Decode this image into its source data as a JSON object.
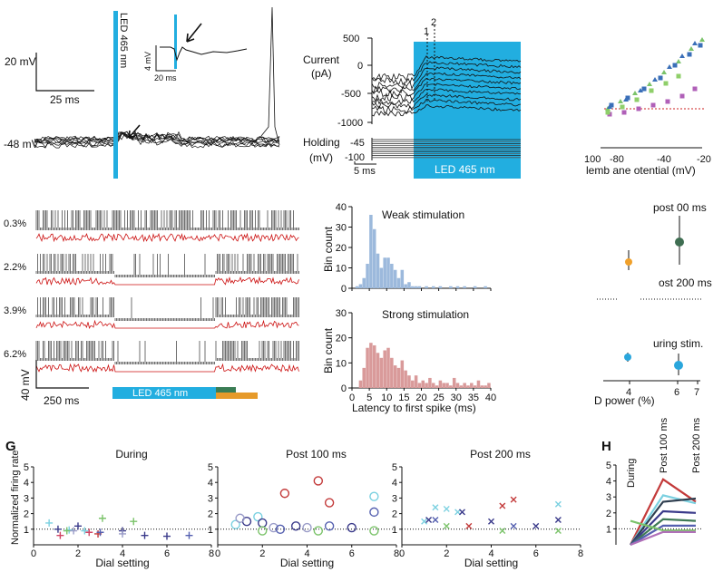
{
  "colors": {
    "led": "#22aee0",
    "trace": "#111111",
    "red_trace": "#cc1111",
    "hist_weak": "#9cb9dc",
    "hist_strong": "#d99a9a",
    "bar_green": "#3a7d55",
    "bar_orange": "#e69a2a",
    "dot_dark_green": "#3f6e52",
    "dot_orange": "#f0a02a",
    "dot_blue": "#2aa6dc",
    "pos_a": "#7ad0e0",
    "pos_b": "#9a9cc8",
    "pos_c": "#7bc36a",
    "pos_d": "#d04464",
    "pos_e": "#3a3a8a",
    "pos_f": "#5560b0",
    "pos_g": "#c33a3a"
  },
  "panel_a": {
    "scale_mv": "20 mV",
    "scale_ms": "25 ms",
    "holding_label": "-48 mV",
    "led_label": "LED 465 nm",
    "inset_mv": "4 mV",
    "inset_ms": "20 ms"
  },
  "panel_b": {
    "current_label": [
      "Current",
      "(pA)"
    ],
    "holding_label": [
      "Holding",
      "(mV)"
    ],
    "y_ticks": [
      "500",
      "0",
      "-500",
      "-1000"
    ],
    "holding_ticks": [
      "-45",
      "-100"
    ],
    "marker_1": "1",
    "marker_2": "2",
    "scale_ms": "5 ms",
    "led_label": "LED 465 nm"
  },
  "panel_c": {
    "x_ticks": [
      "100",
      "-80",
      "-40",
      "-20"
    ],
    "xlabel": "lemb ane otential (mV)"
  },
  "panel_d": {
    "trace_labels": [
      "0.3%",
      "2.2%",
      "3.9%",
      "6.2%"
    ],
    "scale_mv": "40 mV",
    "scale_ms": "250 ms",
    "led_label": "LED 465 nm"
  },
  "panel_e": {
    "y_ticks": [
      "40",
      "30",
      "20",
      "10",
      "0"
    ],
    "x_ticks": [
      "0",
      "5",
      "10",
      "15",
      "20",
      "25",
      "30",
      "35",
      "40"
    ],
    "ylabel": "Bin count",
    "xlabel": "Latency to first spike (ms)",
    "weak_title": "Weak stimulation",
    "strong_title": "Strong stimulation"
  },
  "panel_f": {
    "labels": [
      "post 00 ms",
      "ost 200 ms",
      "uring stim."
    ],
    "x_ticks": [
      "4",
      "6",
      "7"
    ],
    "xlabel": "D power (%)"
  },
  "panel_g_letter": "G",
  "panel_h_letter": "H",
  "panel_h": {
    "labels": [
      "During",
      "Post 100 ms",
      "Post 200 ms"
    ],
    "y_ticks": [
      "1",
      "2",
      "3",
      "4",
      "5"
    ]
  },
  "chart_data": [
    {
      "type": "bar",
      "title": "Weak stimulation",
      "xlabel": "Latency to first spike (ms)",
      "ylabel": "Bin count",
      "xlim": [
        0,
        40
      ],
      "ylim": [
        0,
        40
      ],
      "bin_width": 1,
      "bin_starts": [
        1,
        2,
        3,
        4,
        5,
        6,
        7,
        8,
        9,
        10,
        11,
        12,
        13,
        14,
        15,
        16,
        17,
        18,
        19,
        21,
        23,
        25,
        28,
        30,
        32,
        35,
        38
      ],
      "values": [
        1,
        2,
        5,
        12,
        36,
        29,
        17,
        10,
        15,
        15,
        12,
        9,
        5,
        9,
        2,
        3,
        1,
        1,
        1,
        1,
        1,
        1,
        1,
        1,
        1,
        1,
        1
      ]
    },
    {
      "type": "bar",
      "title": "Strong stimulation",
      "xlabel": "Latency to first spike (ms)",
      "ylabel": "Bin count",
      "xlim": [
        0,
        40
      ],
      "ylim": [
        0,
        30
      ],
      "bin_width": 1,
      "bin_starts": [
        2,
        3,
        4,
        5,
        6,
        7,
        8,
        9,
        10,
        11,
        12,
        13,
        14,
        15,
        16,
        17,
        18,
        19,
        20,
        21,
        22,
        23,
        24,
        25,
        26,
        27,
        28,
        29,
        30,
        31,
        32,
        33,
        34,
        35,
        36,
        37,
        38,
        39
      ],
      "values": [
        3,
        8,
        16,
        18,
        17,
        14,
        12,
        15,
        16,
        12,
        9,
        8,
        11,
        7,
        5,
        3,
        5,
        2,
        3,
        2,
        4,
        2,
        1,
        3,
        2,
        2,
        1,
        4,
        2,
        1,
        2,
        1,
        2,
        1,
        3,
        1,
        1,
        2
      ]
    },
    {
      "type": "scatter",
      "title": "During",
      "xlabel": "Dial setting",
      "ylabel": "Normalized firing rate",
      "xlim": [
        0,
        8
      ],
      "ylim": [
        0,
        5
      ],
      "reference_line": 1,
      "series": [
        {
          "marker": "+",
          "color": "#7ad0e0",
          "points": [
            [
              0.7,
              1.4
            ],
            [
              1.6,
              0.95
            ],
            [
              2.3,
              0.9
            ]
          ]
        },
        {
          "marker": "+",
          "color": "#3a3a8a",
          "points": [
            [
              1.1,
              1.0
            ],
            [
              2.0,
              1.2
            ],
            [
              4.0,
              0.9
            ],
            [
              5.0,
              0.6
            ],
            [
              6.0,
              0.55
            ]
          ]
        },
        {
          "marker": "+",
          "color": "#d04464",
          "points": [
            [
              1.2,
              0.6
            ],
            [
              2.5,
              0.8
            ]
          ]
        },
        {
          "marker": "+",
          "color": "#7bc36a",
          "points": [
            [
              1.5,
              0.9
            ],
            [
              3.1,
              1.7
            ],
            [
              4.5,
              1.5
            ]
          ]
        },
        {
          "marker": "+",
          "color": "#9a9cc8",
          "points": [
            [
              1.8,
              0.9
            ],
            [
              4.0,
              0.7
            ]
          ]
        },
        {
          "marker": "+",
          "color": "#c33a3a",
          "points": [
            [
              2.9,
              0.7
            ]
          ]
        },
        {
          "marker": "+",
          "color": "#5560b0",
          "points": [
            [
              7.0,
              0.6
            ],
            [
              3.0,
              0.8
            ]
          ]
        }
      ]
    },
    {
      "type": "scatter",
      "title": "Post 100 ms",
      "xlabel": "Dial setting",
      "ylabel": "",
      "xlim": [
        0,
        8
      ],
      "ylim": [
        0,
        5
      ],
      "reference_line": 1,
      "series": [
        {
          "marker": "o",
          "color": "#7ad0e0",
          "points": [
            [
              0.8,
              1.3
            ],
            [
              1.8,
              1.8
            ],
            [
              7.0,
              3.1
            ]
          ]
        },
        {
          "marker": "o",
          "color": "#3a3a8a",
          "points": [
            [
              1.3,
              1.5
            ],
            [
              2.0,
              1.4
            ],
            [
              3.5,
              1.2
            ],
            [
              6.0,
              1.1
            ]
          ]
        },
        {
          "marker": "o",
          "color": "#c33a3a",
          "points": [
            [
              3.0,
              3.3
            ],
            [
              4.5,
              4.1
            ],
            [
              5.0,
              2.7
            ]
          ]
        },
        {
          "marker": "o",
          "color": "#7bc36a",
          "points": [
            [
              2.0,
              0.9
            ],
            [
              4.5,
              0.9
            ],
            [
              7.0,
              0.9
            ]
          ]
        },
        {
          "marker": "o",
          "color": "#9a9cc8",
          "points": [
            [
              1.0,
              1.7
            ],
            [
              2.5,
              1.1
            ],
            [
              4.0,
              1.1
            ]
          ]
        },
        {
          "marker": "o",
          "color": "#5560b0",
          "points": [
            [
              5.0,
              1.2
            ],
            [
              7.0,
              2.1
            ],
            [
              2.8,
              1.0
            ]
          ]
        }
      ]
    },
    {
      "type": "scatter",
      "title": "Post 200 ms",
      "xlabel": "Dial setting",
      "ylabel": "",
      "xlim": [
        0,
        8
      ],
      "ylim": [
        0,
        5
      ],
      "reference_line": 1,
      "series": [
        {
          "marker": "x",
          "color": "#7ad0e0",
          "points": [
            [
              1.0,
              1.5
            ],
            [
              1.5,
              2.4
            ],
            [
              2.0,
              2.3
            ],
            [
              2.5,
              2.1
            ],
            [
              7.0,
              2.6
            ]
          ]
        },
        {
          "marker": "x",
          "color": "#3a3a8a",
          "points": [
            [
              1.2,
              1.6
            ],
            [
              2.7,
              2.1
            ],
            [
              4.0,
              1.5
            ],
            [
              7.0,
              1.6
            ],
            [
              6.0,
              1.2
            ]
          ]
        },
        {
          "marker": "x",
          "color": "#c33a3a",
          "points": [
            [
              4.5,
              2.5
            ],
            [
              5.0,
              2.9
            ],
            [
              3.0,
              1.2
            ]
          ]
        },
        {
          "marker": "x",
          "color": "#7bc36a",
          "points": [
            [
              2.0,
              1.2
            ],
            [
              7.0,
              0.9
            ],
            [
              4.5,
              0.9
            ]
          ]
        },
        {
          "marker": "x",
          "color": "#5560b0",
          "points": [
            [
              5.0,
              1.2
            ],
            [
              1.5,
              1.6
            ]
          ]
        }
      ]
    },
    {
      "type": "line",
      "title": "",
      "categories": [
        "During",
        "Post 100 ms",
        "Post 200 ms"
      ],
      "ylim": [
        0,
        5
      ],
      "reference_line": 1,
      "series": [
        {
          "color": "#c33a3a",
          "values": [
            0.0,
            4.1,
            2.7
          ]
        },
        {
          "color": "#7ad0e0",
          "values": [
            0.0,
            3.1,
            2.6
          ]
        },
        {
          "color": "#2f3f50",
          "values": [
            0.0,
            2.7,
            2.9
          ]
        },
        {
          "color": "#3a3a8a",
          "values": [
            0.0,
            2.1,
            2.0
          ]
        },
        {
          "color": "#3f7a56",
          "values": [
            0.0,
            1.6,
            1.5
          ]
        },
        {
          "color": "#5560b0",
          "values": [
            0.0,
            1.2,
            1.2
          ]
        },
        {
          "color": "#7bc36a",
          "values": [
            1.5,
            0.9,
            0.9
          ]
        },
        {
          "color": "#b070b8",
          "values": [
            0.0,
            0.8,
            0.8
          ]
        }
      ]
    }
  ]
}
